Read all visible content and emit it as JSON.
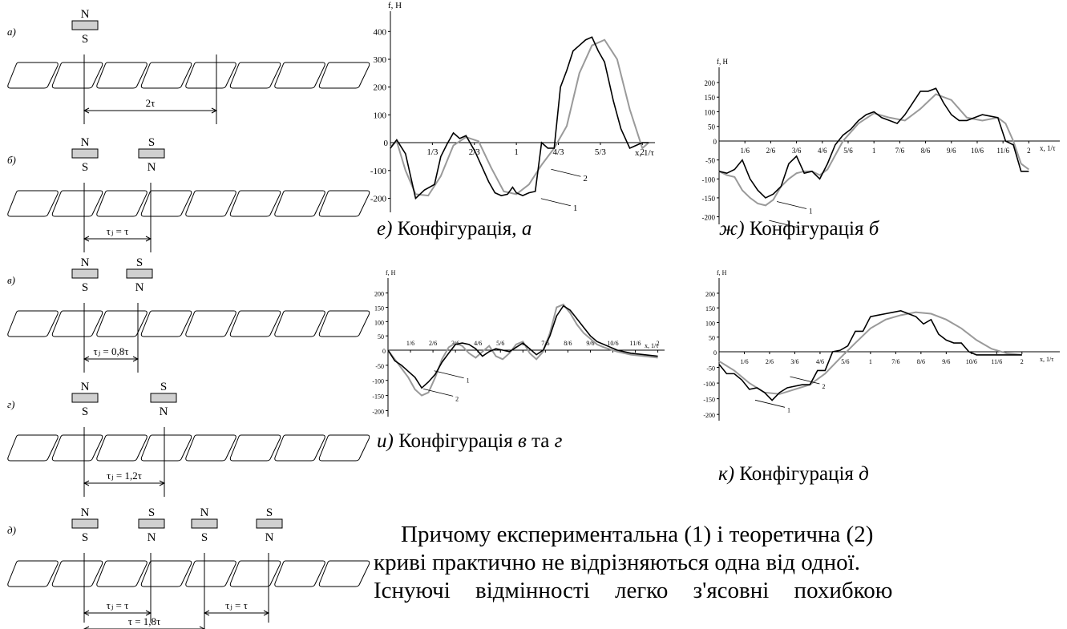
{
  "configs": [
    {
      "id": "a",
      "letter": "а)",
      "magnets": [
        {
          "top": "N",
          "bottom": "S"
        }
      ],
      "dim": "2τ"
    },
    {
      "id": "b",
      "letter": "б)",
      "magnets": [
        {
          "top": "N",
          "bottom": "S"
        },
        {
          "top": "S",
          "bottom": "N"
        }
      ],
      "dim": "τⱼ = τ"
    },
    {
      "id": "v",
      "letter": "в)",
      "magnets": [
        {
          "top": "N",
          "bottom": "S"
        },
        {
          "top": "S",
          "bottom": "N"
        }
      ],
      "dim": "τⱼ = 0,8τ"
    },
    {
      "id": "g",
      "letter": "г)",
      "magnets": [
        {
          "top": "N",
          "bottom": "S"
        },
        {
          "top": "S",
          "bottom": "N"
        }
      ],
      "dim": "τⱼ = 1,2τ"
    },
    {
      "id": "d",
      "letter": "д)",
      "magnets": [
        {
          "top": "N",
          "bottom": "S"
        },
        {
          "top": "S",
          "bottom": "N"
        },
        {
          "top": "N",
          "bottom": "S"
        },
        {
          "top": "S",
          "bottom": "N"
        }
      ],
      "dims": [
        "τⱼ = τ",
        "τⱼ = τ",
        "τ = 1,8τ"
      ]
    }
  ],
  "captions": {
    "e": {
      "letter": "е)",
      "text": " Конфігурація, ",
      "cfg": "а"
    },
    "zh": {
      "letter": "ж)",
      "text": " Конфігурація ",
      "cfg": "б"
    },
    "i": {
      "letter": "и)",
      "text": " Конфігурація ",
      "cfg": "в",
      "join": " та ",
      "cfg2": "г"
    },
    "k": {
      "letter": "к)",
      "text": " Конфігурація ",
      "cfg": "д"
    }
  },
  "body_lines": [
    "Причому експериментальна (1) і теоретична (2)",
    "криві практично не відрізняються одна від одної.",
    "Існуючі відмінності легко з'ясовні похибкою"
  ],
  "colors": {
    "experimental": "#000000",
    "theoretical": "#9a9a9a",
    "magnet_fill": "#d0d0d0"
  },
  "chart_data": [
    {
      "type": "line",
      "id": "e",
      "ylabel": "f, Н",
      "xlabel": "x, 1/τ",
      "xlim": [
        0,
        2.1
      ],
      "ylim": [
        -250,
        450
      ],
      "yticks": [
        -200,
        -100,
        100,
        200,
        300,
        400
      ],
      "xticks": [
        {
          "v": 0.3333,
          "t": "1/3"
        },
        {
          "v": 0.6667,
          "t": "2/3"
        },
        {
          "v": 1,
          "t": "1"
        },
        {
          "v": 1.3333,
          "t": "4/3"
        },
        {
          "v": 1.6667,
          "t": "5/3"
        },
        {
          "v": 2,
          "t": "2"
        }
      ],
      "series": [
        {
          "name": "1",
          "x": [
            0,
            0.05,
            0.12,
            0.2,
            0.27,
            0.35,
            0.4,
            0.45,
            0.5,
            0.55,
            0.6,
            0.67,
            0.72,
            0.78,
            0.83,
            0.88,
            0.93,
            0.97,
            1.0,
            1.05,
            1.1,
            1.15,
            1.2,
            1.25,
            1.3,
            1.35,
            1.4,
            1.45,
            1.5,
            1.55,
            1.6,
            1.65,
            1.7,
            1.77,
            1.83,
            1.9,
            1.95,
            2.0,
            2.05
          ],
          "y": [
            -20,
            10,
            -40,
            -200,
            -170,
            -150,
            -50,
            -5,
            35,
            15,
            25,
            -30,
            -80,
            -140,
            -180,
            -190,
            -185,
            -160,
            -180,
            -190,
            -180,
            -175,
            0,
            -20,
            -20,
            200,
            260,
            330,
            350,
            370,
            380,
            330,
            290,
            150,
            50,
            -20,
            -10,
            0,
            0
          ]
        },
        {
          "name": "2",
          "x": [
            0,
            0.05,
            0.12,
            0.2,
            0.3,
            0.4,
            0.5,
            0.6,
            0.7,
            0.8,
            0.9,
            1.0,
            1.1,
            1.2,
            1.3,
            1.4,
            1.5,
            1.6,
            1.7,
            1.8,
            1.9,
            2.0,
            2.05
          ],
          "y": [
            -15,
            5,
            -100,
            -185,
            -190,
            -120,
            -10,
            20,
            5,
            -90,
            -175,
            -185,
            -150,
            -80,
            -20,
            60,
            250,
            350,
            370,
            300,
            120,
            -20,
            0
          ]
        }
      ],
      "legend_labels": [
        {
          "t": "1",
          "x": 1.45,
          "y": -235
        },
        {
          "t": "2",
          "x": 1.53,
          "y": -130
        }
      ]
    },
    {
      "type": "line",
      "id": "zh",
      "ylabel": "f, Н",
      "xlabel": "x, 1/τ",
      "xlim": [
        0,
        2.2
      ],
      "ylim": [
        -220,
        230
      ],
      "yticks": [
        -200,
        -150,
        -100,
        -50,
        50,
        100,
        150,
        200
      ],
      "xticks": [
        {
          "v": 0.1667,
          "t": "1/6"
        },
        {
          "v": 0.3333,
          "t": "2/6"
        },
        {
          "v": 0.5,
          "t": "3/6"
        },
        {
          "v": 0.6667,
          "t": "4/6"
        },
        {
          "v": 0.8333,
          "t": "5/6"
        },
        {
          "v": 1,
          "t": "1"
        },
        {
          "v": 1.1667,
          "t": "7/6"
        },
        {
          "v": 1.3333,
          "t": "8/6"
        },
        {
          "v": 1.5,
          "t": "9/6"
        },
        {
          "v": 1.6667,
          "t": "10/6"
        },
        {
          "v": 1.8333,
          "t": "11/6"
        },
        {
          "v": 2,
          "t": "2"
        }
      ],
      "series": [
        {
          "name": "1",
          "x": [
            0,
            0.05,
            0.1,
            0.15,
            0.2,
            0.25,
            0.3,
            0.35,
            0.4,
            0.45,
            0.5,
            0.55,
            0.6,
            0.65,
            0.7,
            0.75,
            0.8,
            0.85,
            0.9,
            0.95,
            1.0,
            1.05,
            1.1,
            1.15,
            1.2,
            1.25,
            1.3,
            1.35,
            1.4,
            1.45,
            1.5,
            1.55,
            1.6,
            1.65,
            1.7,
            1.75,
            1.8,
            1.85,
            1.9,
            1.95,
            2.0
          ],
          "y": [
            -80,
            -85,
            -75,
            -50,
            -100,
            -130,
            -150,
            -140,
            -120,
            -60,
            -40,
            -85,
            -80,
            -100,
            -60,
            -10,
            20,
            40,
            70,
            90,
            100,
            80,
            70,
            60,
            90,
            130,
            170,
            170,
            180,
            130,
            90,
            70,
            70,
            80,
            90,
            85,
            80,
            0,
            -10,
            -80,
            -80
          ]
        },
        {
          "name": "2",
          "x": [
            0,
            0.05,
            0.1,
            0.15,
            0.2,
            0.25,
            0.3,
            0.35,
            0.4,
            0.45,
            0.5,
            0.55,
            0.6,
            0.65,
            0.7,
            0.8,
            0.9,
            1.0,
            1.1,
            1.2,
            1.3,
            1.4,
            1.5,
            1.6,
            1.7,
            1.8,
            1.85,
            1.9,
            1.95,
            2.0
          ],
          "y": [
            -80,
            -90,
            -95,
            -130,
            -150,
            -165,
            -170,
            -155,
            -120,
            -100,
            -85,
            -80,
            -80,
            -90,
            -75,
            0,
            60,
            95,
            80,
            70,
            110,
            160,
            140,
            80,
            70,
            80,
            60,
            0,
            -60,
            -75
          ]
        }
      ],
      "legend_labels": [
        {
          "t": "1",
          "x": 0.58,
          "y": -185
        },
        {
          "t": "2",
          "x": 0.53,
          "y": -235
        }
      ]
    },
    {
      "type": "line",
      "id": "i",
      "ylabel": "f, Н",
      "xlabel": "x, 1/τ",
      "xlim": [
        0,
        2.05
      ],
      "ylim": [
        -220,
        230
      ],
      "yticks": [
        -200,
        -150,
        -100,
        -50,
        50,
        100,
        150,
        200
      ],
      "xticks": [
        {
          "v": 0.1667,
          "t": "1/6"
        },
        {
          "v": 0.3333,
          "t": "2/6"
        },
        {
          "v": 0.5,
          "t": "3/6"
        },
        {
          "v": 0.6667,
          "t": "4/6"
        },
        {
          "v": 0.8333,
          "t": "5/6"
        },
        {
          "v": 1,
          "t": "1"
        },
        {
          "v": 1.1667,
          "t": "7/6"
        },
        {
          "v": 1.3333,
          "t": "8/6"
        },
        {
          "v": 1.5,
          "t": "9/6"
        },
        {
          "v": 1.6667,
          "t": "10/6"
        },
        {
          "v": 1.8333,
          "t": "11/6"
        },
        {
          "v": 2,
          "t": "2"
        }
      ],
      "series": [
        {
          "name": "1",
          "x": [
            0,
            0.05,
            0.1,
            0.15,
            0.2,
            0.25,
            0.3,
            0.35,
            0.4,
            0.45,
            0.5,
            0.55,
            0.6,
            0.65,
            0.7,
            0.75,
            0.8,
            0.85,
            0.9,
            0.95,
            1.0,
            1.05,
            1.1,
            1.15,
            1.2,
            1.25,
            1.3,
            1.35,
            1.4,
            1.45,
            1.5,
            1.55,
            1.6,
            1.65,
            1.7,
            1.8,
            1.9,
            2.0
          ],
          "y": [
            0,
            -35,
            -50,
            -70,
            -90,
            -125,
            -105,
            -80,
            -40,
            -10,
            20,
            25,
            20,
            5,
            -20,
            -5,
            5,
            0,
            -5,
            10,
            25,
            5,
            -15,
            0,
            50,
            120,
            155,
            140,
            110,
            80,
            50,
            30,
            20,
            10,
            0,
            -10,
            -15,
            -20
          ]
        },
        {
          "name": "2",
          "x": [
            0,
            0.05,
            0.1,
            0.15,
            0.2,
            0.25,
            0.3,
            0.35,
            0.4,
            0.45,
            0.5,
            0.55,
            0.6,
            0.65,
            0.7,
            0.75,
            0.8,
            0.85,
            0.9,
            0.95,
            1.0,
            1.05,
            1.1,
            1.15,
            1.2,
            1.25,
            1.3,
            1.35,
            1.4,
            1.45,
            1.5,
            1.55,
            1.6,
            1.7,
            1.8,
            1.9,
            2.0
          ],
          "y": [
            0,
            -30,
            -60,
            -90,
            -130,
            -150,
            -140,
            -90,
            -30,
            10,
            25,
            15,
            -10,
            -25,
            -5,
            15,
            -20,
            -30,
            -10,
            20,
            30,
            -10,
            -30,
            -5,
            60,
            150,
            160,
            130,
            90,
            60,
            40,
            20,
            10,
            -5,
            -15,
            -20,
            -25
          ]
        }
      ],
      "legend_labels": [
        {
          "t": "1",
          "x": 0.58,
          "y": -100
        },
        {
          "t": "2",
          "x": 0.5,
          "y": -160
        }
      ]
    },
    {
      "type": "line",
      "id": "k",
      "ylabel": "f, Н",
      "xlabel": "x, 1/τ",
      "xlim": [
        0,
        2.25
      ],
      "ylim": [
        -220,
        230
      ],
      "yticks": [
        -200,
        -150,
        -100,
        -50,
        50,
        100,
        150,
        200
      ],
      "xticks": [
        {
          "v": 0.1667,
          "t": "1/6"
        },
        {
          "v": 0.3333,
          "t": "2/6"
        },
        {
          "v": 0.5,
          "t": "3/6"
        },
        {
          "v": 0.6667,
          "t": "4/6"
        },
        {
          "v": 0.8333,
          "t": "5/6"
        },
        {
          "v": 1,
          "t": "1"
        },
        {
          "v": 1.1667,
          "t": "7/6"
        },
        {
          "v": 1.3333,
          "t": "8/6"
        },
        {
          "v": 1.5,
          "t": "9/6"
        },
        {
          "v": 1.6667,
          "t": "10/6"
        },
        {
          "v": 1.8333,
          "t": "11/6"
        },
        {
          "v": 2,
          "t": "2"
        }
      ],
      "series": [
        {
          "name": "1",
          "x": [
            0,
            0.05,
            0.1,
            0.15,
            0.2,
            0.25,
            0.3,
            0.35,
            0.4,
            0.45,
            0.5,
            0.55,
            0.6,
            0.65,
            0.7,
            0.75,
            0.8,
            0.85,
            0.9,
            0.95,
            1.0,
            1.05,
            1.1,
            1.15,
            1.2,
            1.25,
            1.3,
            1.35,
            1.4,
            1.45,
            1.5,
            1.55,
            1.6,
            1.65,
            1.7,
            1.75,
            1.8,
            1.85,
            1.9,
            1.95,
            2.0
          ],
          "y": [
            -40,
            -70,
            -70,
            -90,
            -120,
            -115,
            -130,
            -155,
            -130,
            -115,
            -110,
            -105,
            -105,
            -60,
            -60,
            0,
            5,
            20,
            70,
            70,
            120,
            125,
            130,
            135,
            140,
            130,
            120,
            95,
            110,
            60,
            40,
            30,
            30,
            0,
            -10,
            -10,
            -10,
            -10,
            -10,
            -10,
            -10
          ]
        },
        {
          "name": "2",
          "x": [
            0,
            0.1,
            0.2,
            0.3,
            0.4,
            0.5,
            0.6,
            0.7,
            0.8,
            0.9,
            1.0,
            1.1,
            1.2,
            1.3,
            1.4,
            1.5,
            1.6,
            1.7,
            1.8,
            1.9,
            2.0
          ],
          "y": [
            -30,
            -60,
            -100,
            -130,
            -135,
            -120,
            -105,
            -70,
            -20,
            30,
            80,
            110,
            125,
            135,
            130,
            110,
            80,
            40,
            10,
            -5,
            -10
          ]
        }
      ],
      "legend_labels": [
        {
          "t": "1",
          "x": 0.45,
          "y": -185
        },
        {
          "t": "2",
          "x": 0.68,
          "y": -110
        }
      ]
    }
  ]
}
